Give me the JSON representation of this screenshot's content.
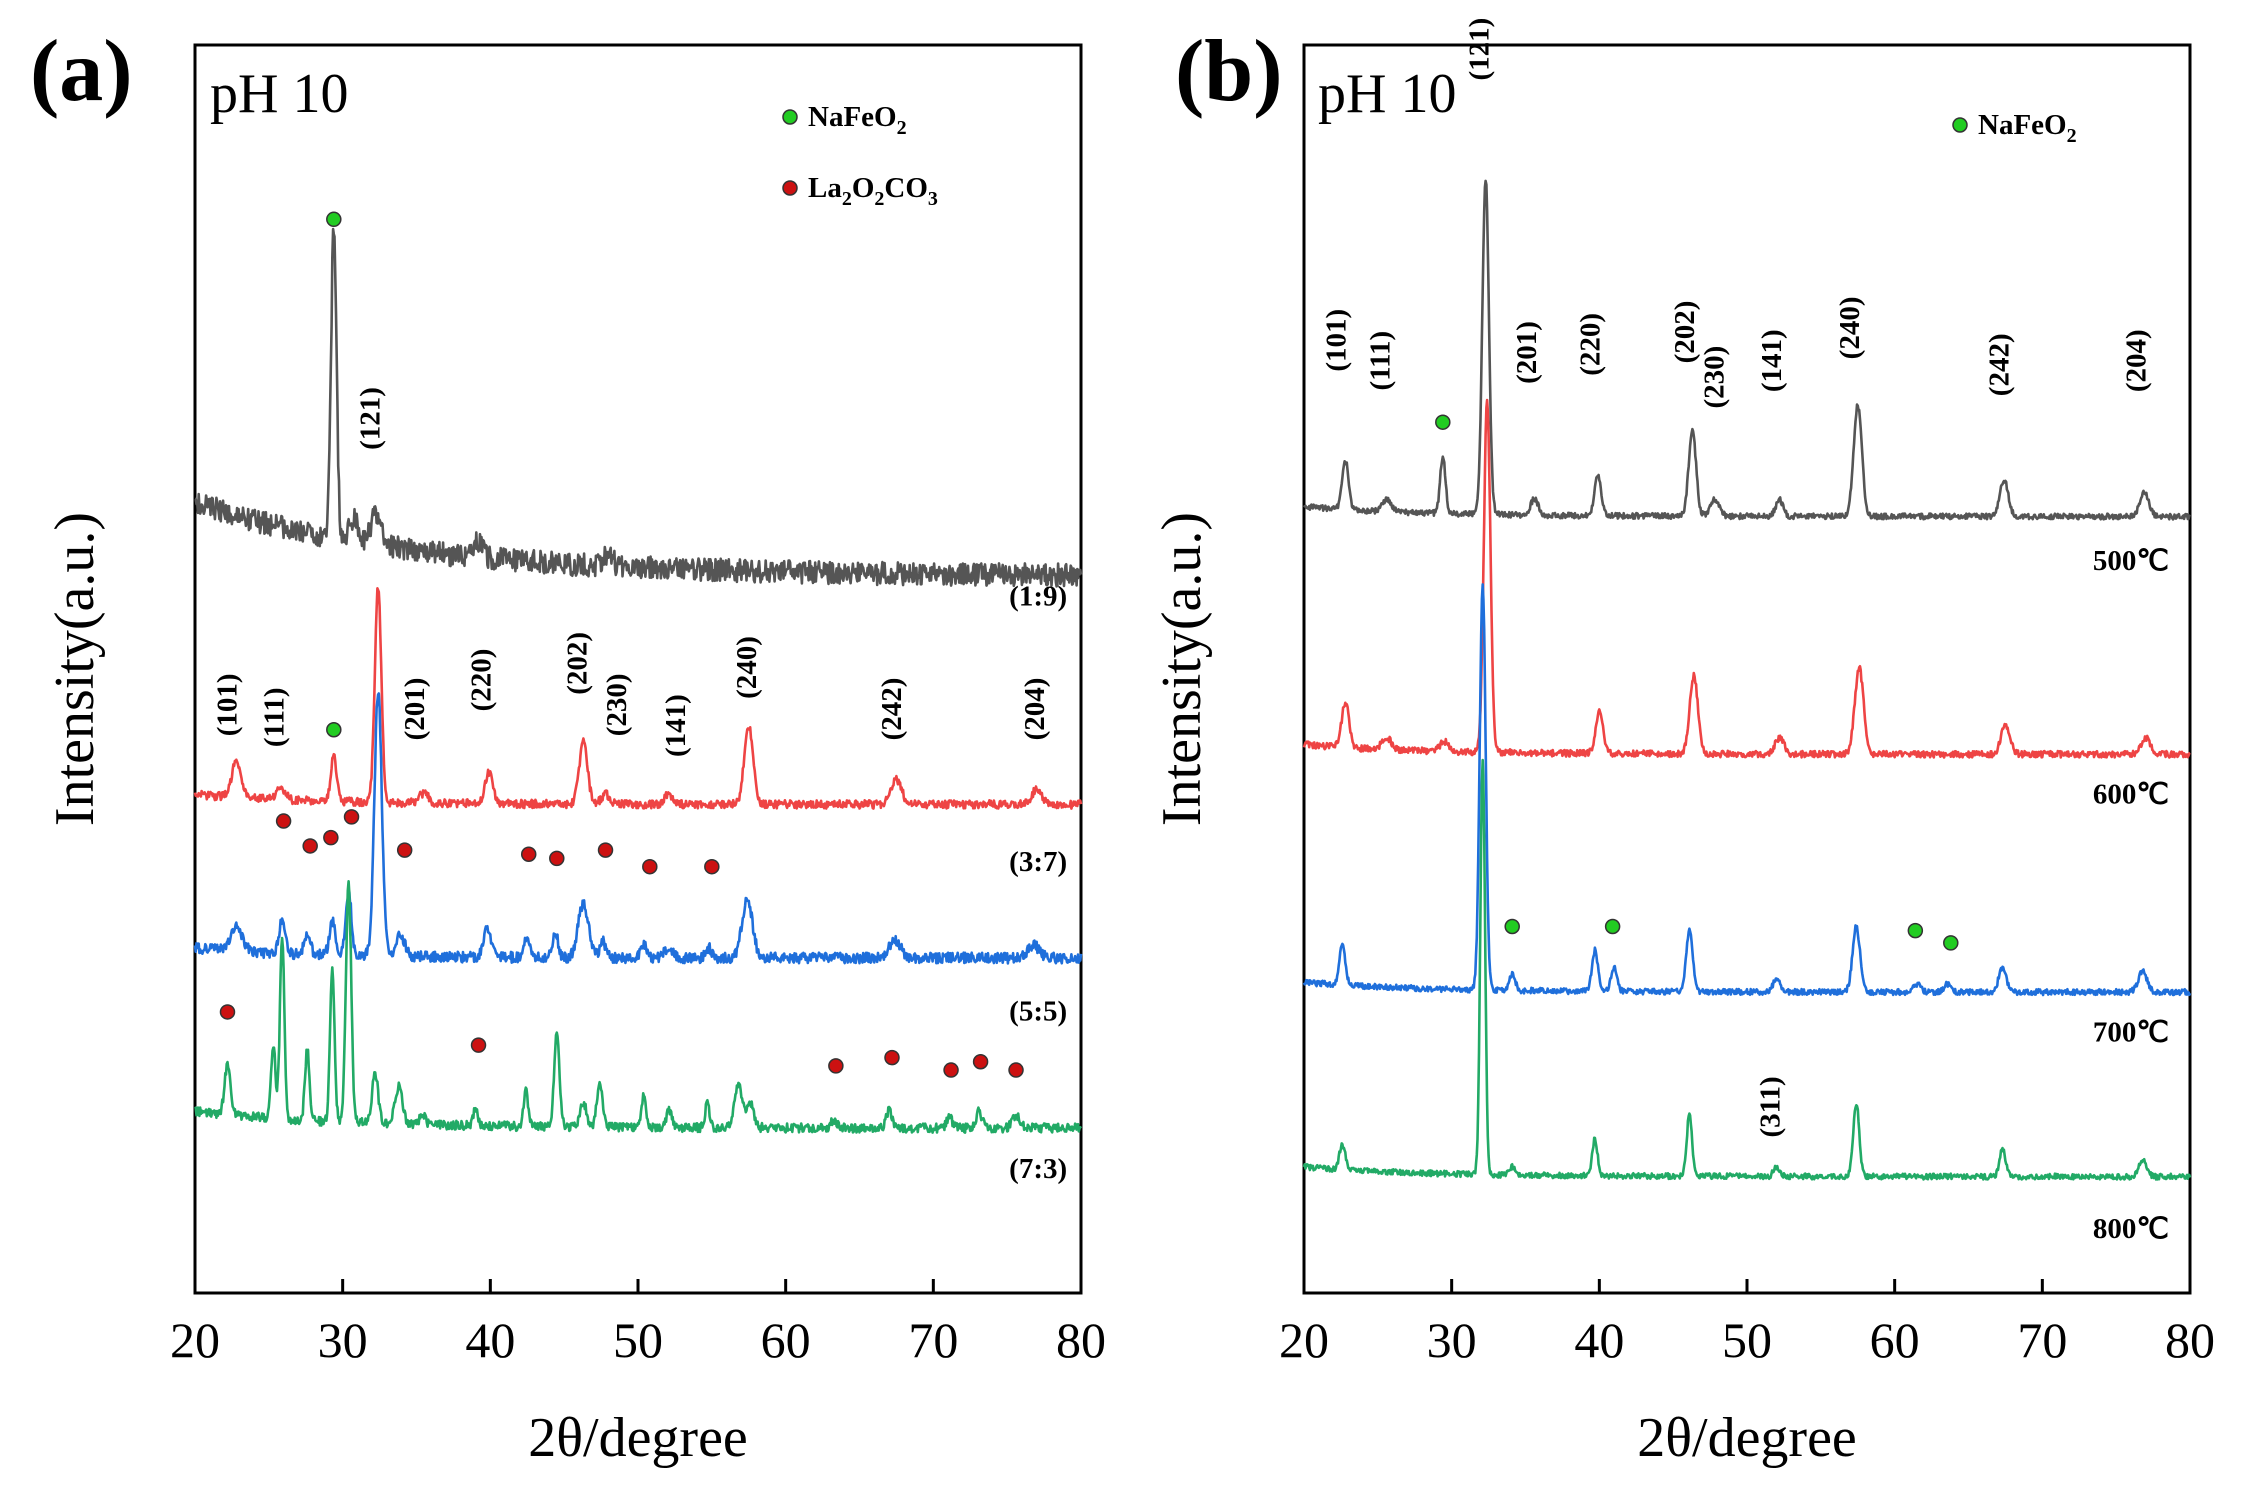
{
  "chart_data": [
    {
      "type": "line",
      "panel_label": "(a)",
      "annotation": "pH 10",
      "xlabel": "2θ/degree",
      "ylabel": "Intensity(a.u.)",
      "xlim": [
        20,
        80
      ],
      "xticks": [
        20,
        30,
        40,
        50,
        60,
        70,
        80
      ],
      "yticks": [],
      "grid": false,
      "legend": [
        {
          "name": "NaFeO2",
          "base": "NaFeO",
          "sub": "2",
          "color": "#22cc22"
        },
        {
          "name": "La2O2CO3",
          "parts": [
            "La",
            "2",
            "O",
            "2",
            "CO",
            "3"
          ],
          "color": "#cc1111"
        }
      ],
      "legend_position": "top-right",
      "series": [
        {
          "name": "(1:9)",
          "color": "#555555",
          "baseline": 8.0,
          "noise": 0.28,
          "sub_peaks": "1:9"
        },
        {
          "name": "(3:7)",
          "color": "#ee4444",
          "baseline": 5.05,
          "noise": 0.1,
          "sub_peaks": "3:7"
        },
        {
          "name": "(5:5)",
          "color": "#1f6fdb",
          "baseline": 3.2,
          "noise": 0.13,
          "sub_peaks": "5:5"
        },
        {
          "name": "(7:3)",
          "color": "#22aa66",
          "baseline": 1.15,
          "noise": 0.11,
          "sub_peaks": "7:3"
        }
      ],
      "peaks": {
        "1:9": [
          [
            29.4,
            3.8,
            0.18
          ],
          [
            30.8,
            0.3,
            0.3
          ],
          [
            32.3,
            0.35,
            0.4
          ],
          [
            39.2,
            0.2,
            0.3
          ],
          [
            48.0,
            0.15,
            0.3
          ]
        ],
        "3:7": [
          [
            22.8,
            0.45,
            0.3
          ],
          [
            25.8,
            0.15,
            0.3
          ],
          [
            29.4,
            0.55,
            0.2
          ],
          [
            32.4,
            2.6,
            0.22
          ],
          [
            35.5,
            0.12,
            0.3
          ],
          [
            39.9,
            0.38,
            0.25
          ],
          [
            46.3,
            0.75,
            0.28
          ],
          [
            47.8,
            0.12,
            0.3
          ],
          [
            52.1,
            0.12,
            0.3
          ],
          [
            57.5,
            0.95,
            0.3
          ],
          [
            67.5,
            0.3,
            0.35
          ],
          [
            77.0,
            0.18,
            0.35
          ]
        ],
        "5:5": [
          [
            22.8,
            0.3,
            0.4
          ],
          [
            25.9,
            0.42,
            0.2
          ],
          [
            27.6,
            0.25,
            0.2
          ],
          [
            29.3,
            0.4,
            0.2
          ],
          [
            30.4,
            0.75,
            0.2
          ],
          [
            32.4,
            3.2,
            0.25
          ],
          [
            33.9,
            0.25,
            0.3
          ],
          [
            39.8,
            0.35,
            0.25
          ],
          [
            42.5,
            0.25,
            0.2
          ],
          [
            44.4,
            0.3,
            0.2
          ],
          [
            46.3,
            0.65,
            0.35
          ],
          [
            47.6,
            0.2,
            0.2
          ],
          [
            50.4,
            0.15,
            0.2
          ],
          [
            52.1,
            0.12,
            0.3
          ],
          [
            54.8,
            0.12,
            0.2
          ],
          [
            57.4,
            0.7,
            0.35
          ],
          [
            67.4,
            0.2,
            0.4
          ],
          [
            76.8,
            0.15,
            0.4
          ]
        ],
        "7:3": [
          [
            22.2,
            0.6,
            0.2
          ],
          [
            25.3,
            0.9,
            0.15
          ],
          [
            25.9,
            2.2,
            0.15
          ],
          [
            27.6,
            0.85,
            0.15
          ],
          [
            29.3,
            1.85,
            0.15
          ],
          [
            30.4,
            2.85,
            0.18
          ],
          [
            32.2,
            0.6,
            0.2
          ],
          [
            33.8,
            0.45,
            0.25
          ],
          [
            35.4,
            0.12,
            0.2
          ],
          [
            39.0,
            0.2,
            0.15
          ],
          [
            42.4,
            0.45,
            0.15
          ],
          [
            44.5,
            1.1,
            0.18
          ],
          [
            46.3,
            0.3,
            0.2
          ],
          [
            47.4,
            0.5,
            0.2
          ],
          [
            50.4,
            0.4,
            0.15
          ],
          [
            52.1,
            0.2,
            0.2
          ],
          [
            54.7,
            0.3,
            0.15
          ],
          [
            56.8,
            0.55,
            0.25
          ],
          [
            57.6,
            0.3,
            0.25
          ],
          [
            63.3,
            0.1,
            0.2
          ],
          [
            67.0,
            0.2,
            0.2
          ],
          [
            71.1,
            0.12,
            0.2
          ],
          [
            73.1,
            0.2,
            0.2
          ],
          [
            75.6,
            0.15,
            0.25
          ]
        ]
      },
      "hkl_labels": [
        {
          "x": 22.8,
          "y": 6.25,
          "text": "(101)"
        },
        {
          "x": 26.0,
          "y": 6.1,
          "text": "(111)"
        },
        {
          "x": 32.5,
          "y": 9.7,
          "text": "(121)"
        },
        {
          "x": 35.5,
          "y": 6.2,
          "text": "(201)"
        },
        {
          "x": 40.0,
          "y": 6.55,
          "text": "(220)"
        },
        {
          "x": 46.5,
          "y": 6.75,
          "text": "(202)"
        },
        {
          "x": 49.2,
          "y": 6.25,
          "text": "(230)"
        },
        {
          "x": 53.2,
          "y": 6.0,
          "text": "(141)"
        },
        {
          "x": 58.0,
          "y": 6.7,
          "text": "(240)"
        },
        {
          "x": 67.8,
          "y": 6.2,
          "text": "(242)"
        },
        {
          "x": 77.5,
          "y": 6.2,
          "text": "(204)"
        }
      ],
      "series_labels": [
        {
          "x": 77.1,
          "y": 7.45,
          "text": "(1:9)"
        },
        {
          "x": 77.1,
          "y": 4.25,
          "text": "(3:7)"
        },
        {
          "x": 77.1,
          "y": 2.45,
          "text": "(5:5)"
        },
        {
          "x": 77.1,
          "y": 0.55,
          "text": "(7:3)"
        }
      ],
      "markers": [
        {
          "x": 29.4,
          "y": 12.1,
          "color": "#22cc22"
        },
        {
          "x": 29.4,
          "y": 5.95,
          "color": "#22cc22"
        },
        {
          "x": 26.0,
          "y": 4.85,
          "color": "#cc1111"
        },
        {
          "x": 27.8,
          "y": 4.55,
          "color": "#cc1111"
        },
        {
          "x": 29.2,
          "y": 4.65,
          "color": "#cc1111"
        },
        {
          "x": 30.6,
          "y": 4.9,
          "color": "#cc1111"
        },
        {
          "x": 34.2,
          "y": 4.5,
          "color": "#cc1111"
        },
        {
          "x": 42.6,
          "y": 4.45,
          "color": "#cc1111"
        },
        {
          "x": 44.5,
          "y": 4.4,
          "color": "#cc1111"
        },
        {
          "x": 47.8,
          "y": 4.5,
          "color": "#cc1111"
        },
        {
          "x": 50.8,
          "y": 4.3,
          "color": "#cc1111"
        },
        {
          "x": 55.0,
          "y": 4.3,
          "color": "#cc1111"
        },
        {
          "x": 22.2,
          "y": 2.55,
          "color": "#cc1111"
        },
        {
          "x": 39.2,
          "y": 2.15,
          "color": "#cc1111"
        },
        {
          "x": 63.4,
          "y": 1.9,
          "color": "#cc1111"
        },
        {
          "x": 67.2,
          "y": 2.0,
          "color": "#cc1111"
        },
        {
          "x": 71.2,
          "y": 1.85,
          "color": "#cc1111"
        },
        {
          "x": 73.2,
          "y": 1.95,
          "color": "#cc1111"
        },
        {
          "x": 75.6,
          "y": 1.85,
          "color": "#cc1111"
        }
      ]
    },
    {
      "type": "line",
      "panel_label": "(b)",
      "annotation": "pH 10",
      "xlabel": "2θ/degree",
      "ylabel": "Intensity(a.u.)",
      "xlim": [
        20,
        80
      ],
      "xticks": [
        20,
        30,
        40,
        50,
        60,
        70,
        80
      ],
      "yticks": [],
      "grid": false,
      "legend": [
        {
          "name": "NaFeO2",
          "base": "NaFeO",
          "sub": "2",
          "color": "#22cc22"
        }
      ],
      "legend_position": "top-right",
      "series": [
        {
          "name": "500℃",
          "color": "#555555",
          "baseline": 8.95,
          "noise": 0.07,
          "sub_peaks": "500"
        },
        {
          "name": "600℃",
          "color": "#ee4444",
          "baseline": 6.05,
          "noise": 0.08,
          "sub_peaks": "600"
        },
        {
          "name": "700℃",
          "color": "#1f6fdb",
          "baseline": 3.15,
          "noise": 0.07,
          "sub_peaks": "700"
        },
        {
          "name": "800℃",
          "color": "#22aa66",
          "baseline": 0.9,
          "noise": 0.07,
          "sub_peaks": "800"
        }
      ],
      "peaks": {
        "500": [
          [
            22.8,
            0.6,
            0.22
          ],
          [
            25.6,
            0.15,
            0.3
          ],
          [
            29.4,
            0.7,
            0.18
          ],
          [
            32.3,
            4.1,
            0.22
          ],
          [
            35.6,
            0.2,
            0.25
          ],
          [
            39.9,
            0.5,
            0.22
          ],
          [
            46.3,
            1.05,
            0.25
          ],
          [
            47.8,
            0.2,
            0.3
          ],
          [
            52.2,
            0.2,
            0.25
          ],
          [
            57.5,
            1.35,
            0.28
          ],
          [
            67.4,
            0.45,
            0.28
          ],
          [
            76.9,
            0.3,
            0.3
          ]
        ],
        "600": [
          [
            22.8,
            0.55,
            0.25
          ],
          [
            25.6,
            0.15,
            0.3
          ],
          [
            29.5,
            0.12,
            0.3
          ],
          [
            32.4,
            4.3,
            0.22
          ],
          [
            40.0,
            0.5,
            0.25
          ],
          [
            46.4,
            0.95,
            0.28
          ],
          [
            52.2,
            0.2,
            0.3
          ],
          [
            57.6,
            1.05,
            0.3
          ],
          [
            67.5,
            0.35,
            0.3
          ],
          [
            77.0,
            0.2,
            0.3
          ]
        ],
        "700": [
          [
            22.6,
            0.5,
            0.2
          ],
          [
            32.1,
            4.95,
            0.2
          ],
          [
            34.1,
            0.2,
            0.2
          ],
          [
            39.7,
            0.5,
            0.2
          ],
          [
            41.0,
            0.3,
            0.2
          ],
          [
            46.1,
            0.75,
            0.22
          ],
          [
            52.0,
            0.15,
            0.25
          ],
          [
            57.4,
            0.8,
            0.25
          ],
          [
            61.5,
            0.1,
            0.25
          ],
          [
            63.6,
            0.1,
            0.25
          ],
          [
            67.3,
            0.3,
            0.25
          ],
          [
            76.8,
            0.25,
            0.3
          ]
        ],
        "800": [
          [
            22.6,
            0.3,
            0.2
          ],
          [
            32.1,
            5.05,
            0.16
          ],
          [
            34.1,
            0.1,
            0.2
          ],
          [
            39.7,
            0.45,
            0.18
          ],
          [
            46.1,
            0.75,
            0.18
          ],
          [
            52.0,
            0.12,
            0.2
          ],
          [
            57.4,
            0.9,
            0.2
          ],
          [
            67.3,
            0.35,
            0.2
          ],
          [
            76.8,
            0.2,
            0.25
          ]
        ]
      },
      "hkl_labels": [
        {
          "x": 22.8,
          "y": 11.1,
          "text": "(101)"
        },
        {
          "x": 25.8,
          "y": 10.85,
          "text": "(111)"
        },
        {
          "x": 32.5,
          "y": 14.65,
          "text": "(121)"
        },
        {
          "x": 35.7,
          "y": 10.95,
          "text": "(201)"
        },
        {
          "x": 40.0,
          "y": 11.05,
          "text": "(220)"
        },
        {
          "x": 46.4,
          "y": 11.2,
          "text": "(202)"
        },
        {
          "x": 48.4,
          "y": 10.65,
          "text": "(230)"
        },
        {
          "x": 52.3,
          "y": 10.85,
          "text": "(141)"
        },
        {
          "x": 57.6,
          "y": 11.25,
          "text": "(240)"
        },
        {
          "x": 67.7,
          "y": 10.8,
          "text": "(242)"
        },
        {
          "x": 77.0,
          "y": 10.85,
          "text": "(204)"
        },
        {
          "x": 52.2,
          "y": 1.75,
          "text": "(311)"
        }
      ],
      "series_labels": [
        {
          "x": 76.0,
          "y": 8.3,
          "text": "500℃"
        },
        {
          "x": 76.0,
          "y": 5.45,
          "text": "600℃"
        },
        {
          "x": 76.0,
          "y": 2.55,
          "text": "700℃"
        },
        {
          "x": 76.0,
          "y": 0.15,
          "text": "800℃"
        }
      ],
      "markers": [
        {
          "x": 29.4,
          "y": 10.1,
          "color": "#22cc22"
        },
        {
          "x": 34.1,
          "y": 3.95,
          "color": "#22cc22"
        },
        {
          "x": 40.9,
          "y": 3.95,
          "color": "#22cc22"
        },
        {
          "x": 61.4,
          "y": 3.9,
          "color": "#22cc22"
        },
        {
          "x": 63.8,
          "y": 3.75,
          "color": "#22cc22"
        }
      ]
    }
  ]
}
